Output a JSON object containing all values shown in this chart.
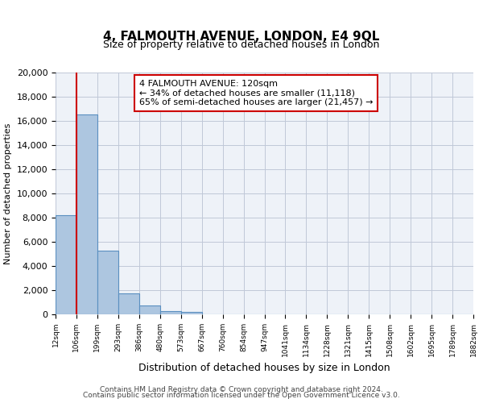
{
  "title": "4, FALMOUTH AVENUE, LONDON, E4 9QL",
  "subtitle": "Size of property relative to detached houses in London",
  "xlabel": "Distribution of detached houses by size in London",
  "ylabel": "Number of detached properties",
  "bar_values": [
    8200,
    16500,
    5300,
    1750,
    750,
    280,
    230,
    0,
    0,
    0,
    0,
    0,
    0,
    0,
    0,
    0,
    0,
    0,
    0,
    0
  ],
  "bin_labels": [
    "12sqm",
    "106sqm",
    "199sqm",
    "293sqm",
    "386sqm",
    "480sqm",
    "573sqm",
    "667sqm",
    "760sqm",
    "854sqm",
    "947sqm",
    "1041sqm",
    "1134sqm",
    "1228sqm",
    "1321sqm",
    "1415sqm",
    "1508sqm",
    "1602sqm",
    "1695sqm",
    "1789sqm",
    "1882sqm"
  ],
  "bar_color": "#adc6e0",
  "bar_edge_color": "#5a8fc0",
  "vertical_line_x": 1.0,
  "vertical_line_color": "#cc0000",
  "annotation_box_text": "4 FALMOUTH AVENUE: 120sqm\n← 34% of detached houses are smaller (11,118)\n65% of semi-detached houses are larger (21,457) →",
  "ylim": [
    0,
    20000
  ],
  "yticks": [
    0,
    2000,
    4000,
    6000,
    8000,
    10000,
    12000,
    14000,
    16000,
    18000,
    20000
  ],
  "grid_color": "#c0c8d8",
  "background_color": "#eef2f8",
  "footer_line1": "Contains HM Land Registry data © Crown copyright and database right 2024.",
  "footer_line2": "Contains public sector information licensed under the Open Government Licence v3.0."
}
